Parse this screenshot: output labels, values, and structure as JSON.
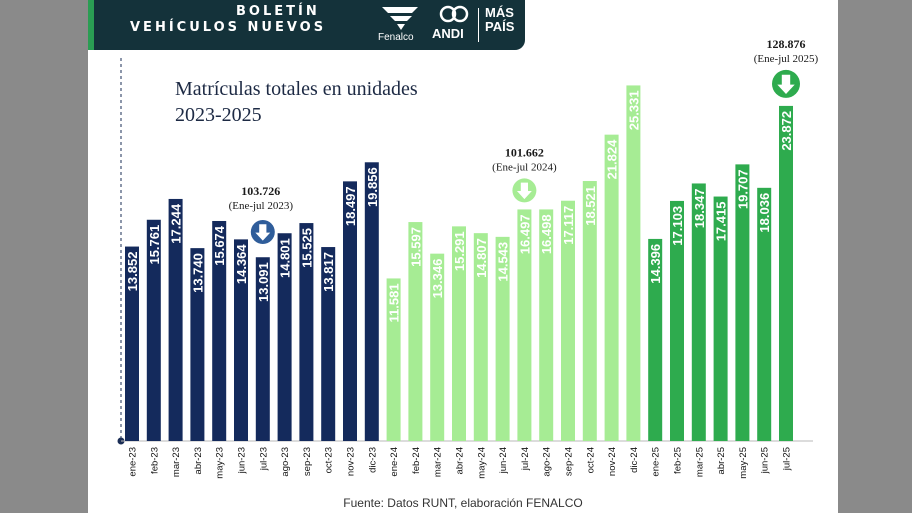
{
  "banner": {
    "line1": "BOLETÍN",
    "line2": "VEHÍCULOS NUEVOS",
    "logos": {
      "fenalco": "Fenalco",
      "andi": "ANDI",
      "maspais_line1": "MÁS",
      "maspais_line2": "PAÍS"
    }
  },
  "footer": "Fuente: Datos RUNT, elaboración FENALCO",
  "colors": {
    "2023": "#142a5c",
    "2024": "#a6ec94",
    "2025": "#2eab4e",
    "banner": "#14323a",
    "arrow_2023": "#2f5d9a",
    "arrow_2025": "#2eab4e"
  },
  "annotations": [
    {
      "total": "103.726",
      "period": "(Ene-jul 2023)",
      "arrow_icon": "down-arrow-icon",
      "at": "jul-23"
    },
    {
      "total": "101.662",
      "period": "(Ene-jul 2024)",
      "arrow_icon": "down-arrow-icon",
      "at": "jul-24"
    },
    {
      "total": "128.876",
      "period": "(Ene-jul 2025)",
      "arrow_icon": "down-arrow-icon",
      "at": "jul-25"
    }
  ],
  "chart_data": {
    "type": "bar",
    "title": "Matrículas totales en unidades",
    "subtitle": "2023-2025",
    "ylim": [
      0,
      27000
    ],
    "grid": false,
    "categories": [
      "ene-23",
      "feb-23",
      "mar-23",
      "abr-23",
      "may-23",
      "jun-23",
      "jul-23",
      "ago-23",
      "sep-23",
      "oct-23",
      "nov-23",
      "dic-23",
      "ene-24",
      "feb-24",
      "mar-24",
      "abr-24",
      "may-24",
      "jun-24",
      "jul-24",
      "ago-24",
      "sep-24",
      "oct-24",
      "nov-24",
      "dic-24",
      "ene-25",
      "feb-25",
      "mar-25",
      "abr-25",
      "may-25",
      "jun-25",
      "jul-25"
    ],
    "values": [
      13852,
      15761,
      17244,
      13740,
      15674,
      14364,
      13091,
      14801,
      15525,
      13817,
      18497,
      19856,
      11581,
      15597,
      13346,
      15291,
      14807,
      14543,
      16497,
      16498,
      17117,
      18521,
      21824,
      25331,
      14396,
      17103,
      18347,
      17415,
      19707,
      18036,
      23872
    ],
    "labels": [
      "13.852",
      "15.761",
      "17.244",
      "13.740",
      "15.674",
      "14.364",
      "13.091",
      "14.801",
      "15.525",
      "13.817",
      "18.497",
      "19.856",
      "11.581",
      "15.597",
      "13.346",
      "15.291",
      "14.807",
      "14.543",
      "16.497",
      "16.498",
      "17.117",
      "18.521",
      "21.824",
      "25.331",
      "14.396",
      "17.103",
      "18.347",
      "17.415",
      "19.707",
      "18.036",
      "23.872"
    ],
    "groups": [
      "2023",
      "2023",
      "2023",
      "2023",
      "2023",
      "2023",
      "2023",
      "2023",
      "2023",
      "2023",
      "2023",
      "2023",
      "2024",
      "2024",
      "2024",
      "2024",
      "2024",
      "2024",
      "2024",
      "2024",
      "2024",
      "2024",
      "2024",
      "2024",
      "2025",
      "2025",
      "2025",
      "2025",
      "2025",
      "2025",
      "2025"
    ]
  }
}
